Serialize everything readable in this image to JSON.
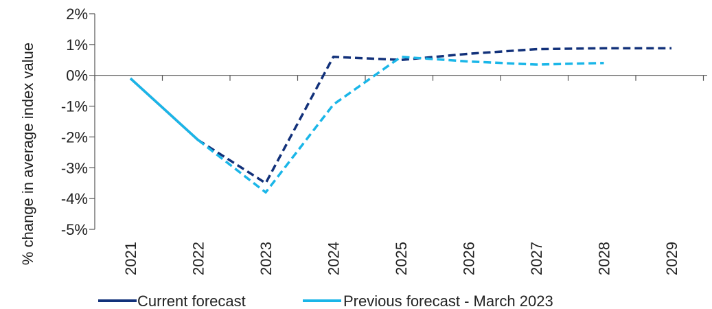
{
  "chart_data": {
    "type": "line",
    "ylabel": "% change in average index value",
    "xlabel": "",
    "x": [
      "2021",
      "2022",
      "2023",
      "2024",
      "2025",
      "2026",
      "2027",
      "2028",
      "2029"
    ],
    "ylim": [
      -5,
      2
    ],
    "yticks": [
      2,
      1,
      0,
      -1,
      -2,
      -3,
      -4,
      -5
    ],
    "ytick_labels": [
      "2%",
      "1%",
      "0%",
      "-1%",
      "-2%",
      "-3%",
      "-4%",
      "-5%"
    ],
    "grid": false,
    "legend_position": "bottom",
    "series": [
      {
        "name": "Current forecast",
        "color": "#12317a",
        "values": [
          -0.1,
          -2.1,
          -3.5,
          0.6,
          0.5,
          0.7,
          0.85,
          0.88,
          0.88
        ],
        "solid_until_index": 1
      },
      {
        "name": "Previous forecast - March 2023",
        "color": "#1ab6e8",
        "values": [
          -0.1,
          -2.1,
          -3.8,
          -0.95,
          0.6,
          0.45,
          0.35,
          0.4,
          null
        ],
        "solid_until_index": 1
      }
    ]
  }
}
